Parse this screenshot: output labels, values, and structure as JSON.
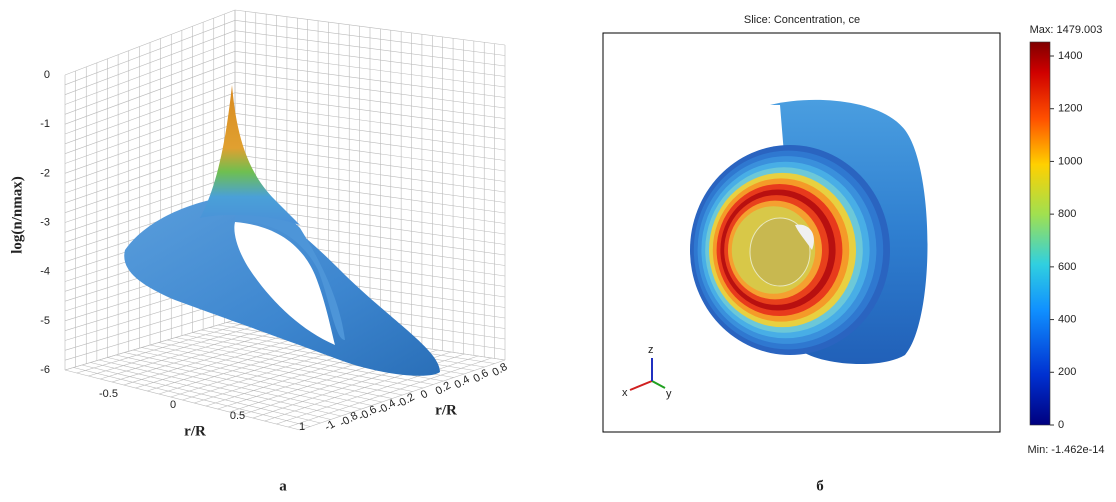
{
  "panel_a": {
    "z_axis_label": "log(n/nmax)",
    "z_ticks": [
      0,
      -1,
      -2,
      -3,
      -4,
      -5,
      -6
    ],
    "x_axis_label": "r/R",
    "x_ticks": [
      -0.5,
      0,
      0.5,
      1
    ],
    "y_axis_label": "r/R",
    "y_ticks": [
      -1,
      -0.8,
      -0.6,
      -0.4,
      -0.2,
      0,
      0.2,
      0.4,
      0.6,
      0.8
    ],
    "caption": "а"
  },
  "panel_b": {
    "title": "Slice: Concentration, ce",
    "max_label": "Max: 1479.003",
    "min_label": "Min: -1.462e-14",
    "colorbar_ticks": [
      0,
      200,
      400,
      600,
      800,
      1000,
      1200,
      1400
    ],
    "triad": [
      "x",
      "y",
      "z"
    ],
    "caption": "б"
  }
}
